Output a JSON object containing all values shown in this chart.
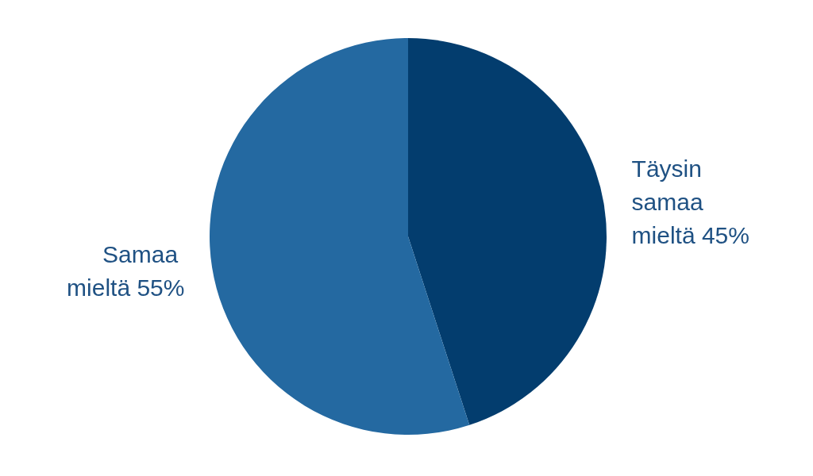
{
  "chart_data": {
    "type": "pie",
    "categories": [
      "Täysin samaa mieltä",
      "Samaa mieltä"
    ],
    "values": [
      45,
      55
    ],
    "value_labels": [
      "45%",
      "55%"
    ],
    "colors": [
      "#033d6e",
      "#2469a1"
    ]
  }
}
